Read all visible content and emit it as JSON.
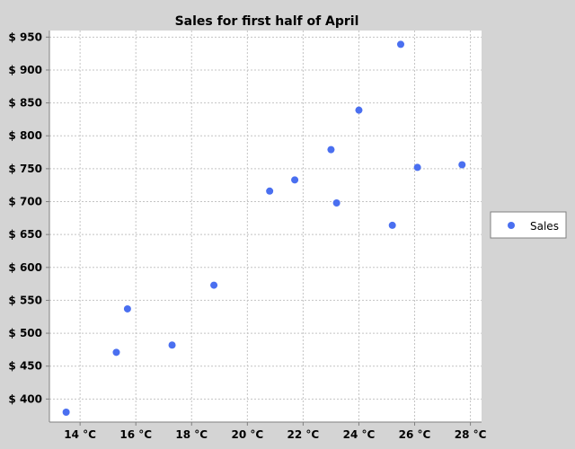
{
  "chart_data": {
    "type": "scatter",
    "title": "Sales for first half of April",
    "xlabel": "",
    "ylabel": "",
    "x_unit": "°C",
    "y_prefix": "$",
    "xlim": [
      12.9,
      28.4
    ],
    "ylim": [
      365,
      960
    ],
    "x_ticks": [
      14,
      16,
      18,
      20,
      22,
      24,
      26,
      28
    ],
    "y_ticks": [
      400,
      450,
      500,
      550,
      600,
      650,
      700,
      750,
      800,
      850,
      900,
      950
    ],
    "x_tick_labels": [
      "14 °C",
      "16 °C",
      "18 °C",
      "20 °C",
      "22 °C",
      "24 °C",
      "26 °C",
      "28 °C"
    ],
    "y_tick_labels": [
      "$ 400",
      "$ 450",
      "$ 500",
      "$ 550",
      "$ 600",
      "$ 650",
      "$ 700",
      "$ 750",
      "$ 800",
      "$ 850",
      "$ 900",
      "$ 950"
    ],
    "grid": true,
    "legend_position": "right",
    "series": [
      {
        "name": "Sales",
        "color": "#4a6ff0",
        "points": [
          {
            "x": 13.5,
            "y": 380
          },
          {
            "x": 15.3,
            "y": 471
          },
          {
            "x": 15.7,
            "y": 537
          },
          {
            "x": 17.3,
            "y": 482
          },
          {
            "x": 18.8,
            "y": 573
          },
          {
            "x": 20.8,
            "y": 716
          },
          {
            "x": 21.7,
            "y": 733
          },
          {
            "x": 23.0,
            "y": 779
          },
          {
            "x": 23.2,
            "y": 698
          },
          {
            "x": 24.0,
            "y": 839
          },
          {
            "x": 25.2,
            "y": 664
          },
          {
            "x": 25.5,
            "y": 939
          },
          {
            "x": 26.1,
            "y": 752
          },
          {
            "x": 27.7,
            "y": 756
          }
        ]
      }
    ]
  }
}
